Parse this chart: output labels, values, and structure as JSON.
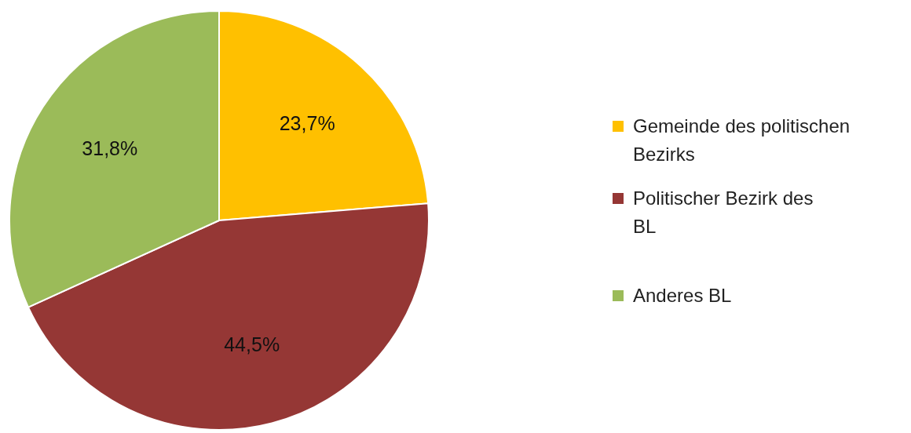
{
  "chart_data": {
    "type": "pie",
    "categories": [
      "Gemeinde des politischen Bezirks",
      "Politischer Bezirk des BL",
      "Anderes BL"
    ],
    "values": [
      23.7,
      44.5,
      31.8
    ],
    "colors": [
      "#ffc000",
      "#953735",
      "#9bbb59"
    ],
    "value_labels": [
      "23,7%",
      "44,5%",
      "31,8%"
    ],
    "legend": "right"
  }
}
